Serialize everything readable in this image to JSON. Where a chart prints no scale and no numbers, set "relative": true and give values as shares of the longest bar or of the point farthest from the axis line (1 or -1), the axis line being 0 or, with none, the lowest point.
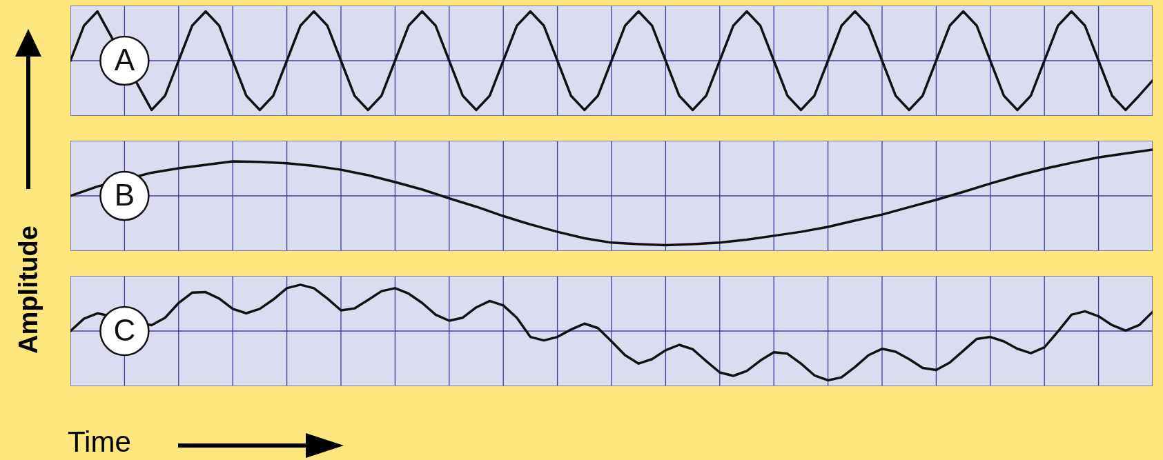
{
  "chart_data": [
    {
      "type": "line",
      "relative": true,
      "grid": true,
      "legend": false,
      "annotations": [
        "A"
      ],
      "categories": [
        null,
        null,
        null,
        null,
        null,
        null,
        null,
        null,
        null,
        null,
        null,
        null,
        null,
        null,
        null,
        null,
        null,
        null,
        null,
        null,
        null,
        null,
        null,
        null,
        null,
        null,
        null,
        null,
        null,
        null,
        null,
        null,
        null,
        null,
        null,
        null,
        null,
        null,
        null,
        null,
        null,
        null,
        null,
        null,
        null,
        null,
        null,
        null,
        null,
        null,
        null,
        null,
        null,
        null,
        null,
        null,
        null,
        null,
        null,
        null,
        null,
        null,
        null,
        null,
        null,
        null,
        null,
        null,
        null,
        null,
        null,
        null,
        null,
        null,
        null,
        null,
        null,
        null,
        null,
        null,
        null
      ],
      "series": [
        {
          "color": "#111111",
          "values": [
            0,
            0.71,
            1,
            null,
            null,
            null,
            -1,
            -0.71,
            0,
            0.71,
            1,
            0.71,
            0,
            -0.71,
            -1,
            -0.71,
            0,
            0.71,
            1,
            0.71,
            0,
            -0.71,
            -1,
            -0.71,
            0,
            0.71,
            1,
            0.71,
            0,
            -0.71,
            -1,
            -0.71,
            0,
            0.71,
            1,
            0.71,
            0,
            -0.71,
            -1,
            -0.71,
            0,
            0.71,
            1,
            0.71,
            0,
            -0.71,
            -1,
            -0.71,
            0,
            0.71,
            1,
            0.71,
            0,
            -0.71,
            -1,
            -0.71,
            0,
            0.71,
            1,
            0.71,
            0,
            -0.71,
            -1,
            -0.71,
            0,
            0.71,
            1,
            0.71,
            0,
            -0.71,
            -1,
            -0.71,
            0,
            0.71,
            1,
            0.71,
            0,
            -0.71,
            -1,
            -0.71,
            -0.4
          ]
        }
      ]
    },
    {
      "type": "line",
      "relative": true,
      "grid": true,
      "legend": false,
      "annotations": [
        "B"
      ],
      "ylabel": "Amplitude",
      "categories": [
        null,
        null,
        null,
        null,
        null,
        null,
        null,
        null,
        null,
        null,
        null,
        null,
        null,
        null,
        null,
        null,
        null,
        null,
        null,
        null,
        null,
        null,
        null,
        null,
        null,
        null,
        null,
        null,
        null,
        null,
        null,
        null,
        null,
        null,
        null,
        null,
        null,
        null,
        null,
        null,
        null
      ],
      "series": [
        {
          "color": "#111111",
          "values": [
            0,
            0.19,
            null,
            0.47,
            0.56,
            0.63,
            0.7,
            0.69,
            0.66,
            0.61,
            0.53,
            0.42,
            0.28,
            0.13,
            -0.05,
            -0.22,
            -0.41,
            -0.58,
            -0.73,
            -0.86,
            -0.95,
            -0.98,
            -1,
            -0.98,
            -0.95,
            -0.89,
            -0.81,
            -0.73,
            -0.63,
            -0.5,
            -0.38,
            -0.23,
            -0.08,
            0.08,
            0.25,
            0.41,
            0.55,
            0.67,
            0.78,
            0.86,
            0.94
          ]
        }
      ]
    },
    {
      "type": "line",
      "relative": true,
      "grid": true,
      "legend": false,
      "annotations": [
        "C"
      ],
      "xlabel": "Time",
      "categories": [
        null,
        null,
        null,
        null,
        null,
        null,
        null,
        null,
        null,
        null,
        null,
        null,
        null,
        null,
        null,
        null,
        null,
        null,
        null,
        null,
        null,
        null,
        null,
        null,
        null,
        null,
        null,
        null,
        null,
        null,
        null,
        null,
        null,
        null,
        null,
        null,
        null,
        null,
        null,
        null,
        null,
        null,
        null,
        null,
        null,
        null,
        null,
        null,
        null,
        null,
        null,
        null,
        null,
        null,
        null,
        null,
        null,
        null,
        null,
        null,
        null,
        null,
        null,
        null,
        null,
        null,
        null,
        null,
        null,
        null,
        null,
        null,
        null,
        null,
        null,
        null,
        null,
        null,
        null,
        null,
        null
      ],
      "series": [
        {
          "color": "#111111",
          "values": [
            0,
            0.25,
            0.36,
            null,
            null,
            null,
            0.12,
            0.27,
            0.57,
            0.78,
            0.79,
            0.66,
            0.45,
            0.36,
            0.45,
            0.64,
            0.87,
            0.94,
            0.87,
            0.66,
            0.42,
            0.46,
            0.63,
            0.81,
            0.87,
            0.76,
            0.57,
            0.33,
            0.21,
            0.27,
            0.48,
            0.61,
            0.52,
            0.27,
            -0.12,
            -0.19,
            -0.12,
            0.03,
            0.15,
            0.06,
            -0.21,
            -0.49,
            -0.66,
            -0.57,
            -0.39,
            -0.28,
            -0.37,
            -0.61,
            -0.84,
            -0.91,
            -0.81,
            -0.6,
            -0.43,
            -0.46,
            -0.66,
            -0.9,
            -1,
            -0.94,
            -0.73,
            -0.49,
            -0.36,
            -0.42,
            -0.57,
            -0.75,
            -0.79,
            -0.64,
            -0.4,
            -0.16,
            -0.12,
            -0.21,
            -0.36,
            -0.45,
            -0.33,
            -0.01,
            0.33,
            0.4,
            0.3,
            0.12,
            0.01,
            0.12,
            0.39
          ]
        }
      ]
    }
  ]
}
